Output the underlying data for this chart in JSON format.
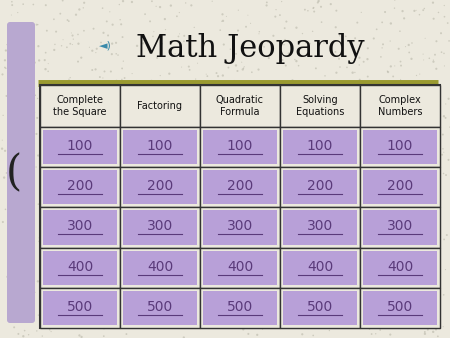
{
  "title": "Math Jeopardy",
  "title_fontsize": 22,
  "title_color": "#111111",
  "title_font": "DejaVu Serif",
  "bg_color": "#ece9de",
  "header_bg": "#ece9de",
  "cell_bg": "#b8a0d8",
  "table_bg": "#ece9de",
  "table_border": "#333333",
  "header_text_color": "#111111",
  "cell_text_color": "#5a3a7a",
  "headers": [
    "Complete\nthe Square",
    "Factoring",
    "Quadratic\nFormula",
    "Solving\nEquations",
    "Complex\nNumbers"
  ],
  "values": [
    "100",
    "200",
    "300",
    "400",
    "500"
  ],
  "num_cols": 5,
  "num_rows": 5,
  "left_bar_color": "#b8a8d0",
  "olive_line_color": "#9a9a30",
  "speaker_color": "#3a8aaa",
  "font_family": "sans-serif",
  "header_fontsize": 7,
  "cell_fontsize": 10
}
